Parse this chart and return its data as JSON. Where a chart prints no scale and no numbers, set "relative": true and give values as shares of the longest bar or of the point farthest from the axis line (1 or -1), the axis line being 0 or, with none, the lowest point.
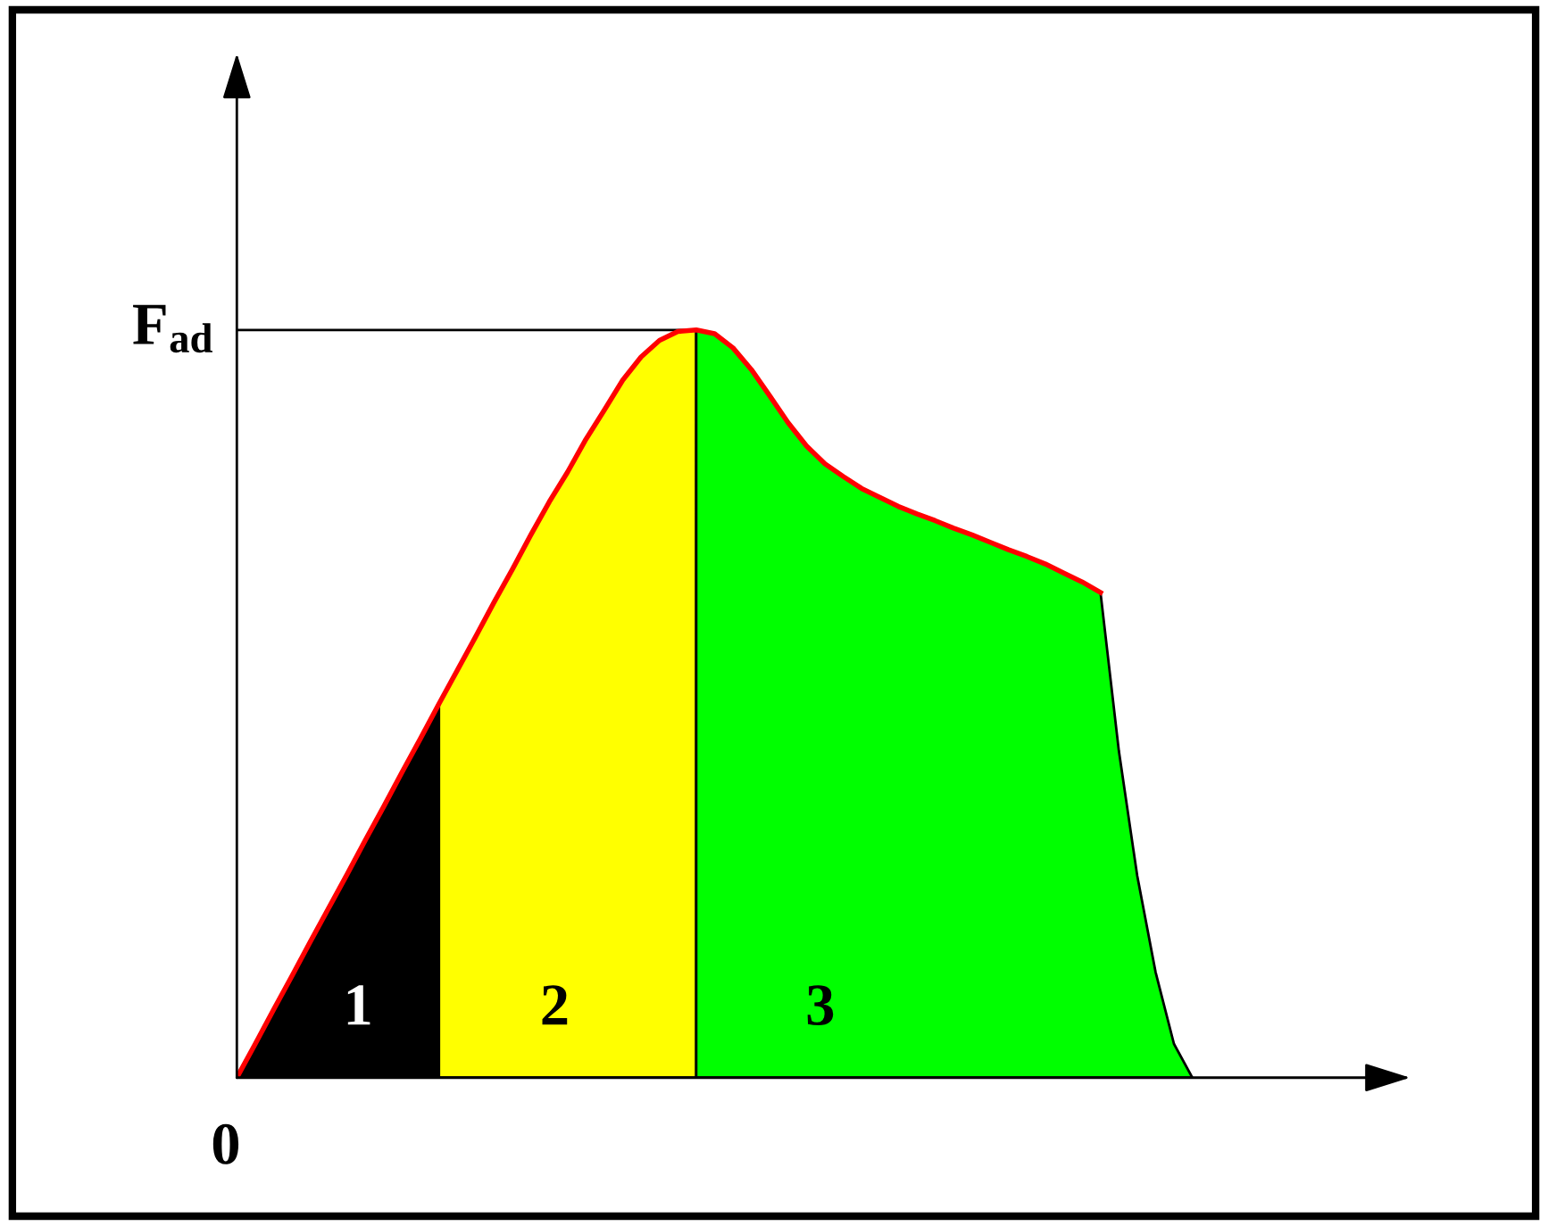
{
  "chart_data": {
    "type": "area",
    "relative": true,
    "categories": [
      null,
      null,
      null,
      null,
      null,
      null,
      null,
      null,
      null,
      null,
      null,
      null,
      null,
      null,
      null,
      null,
      null,
      null,
      null,
      null,
      null,
      null,
      null,
      null,
      null,
      null,
      null,
      null,
      null,
      null,
      null,
      null,
      null,
      null,
      null,
      null,
      null,
      null,
      null,
      null,
      null,
      null,
      null,
      null,
      null,
      null,
      null,
      null,
      null,
      null,
      null,
      null,
      null
    ],
    "series": [
      {
        "color": "#000000",
        "values": [
          0,
          0.045,
          0.091,
          0.136,
          0.182,
          0.227,
          0.272,
          0.318,
          0.363,
          0.409,
          0.454,
          0.5,
          null,
          null,
          null,
          null,
          null,
          null,
          null,
          null,
          null,
          null,
          null,
          null,
          null,
          null,
          null,
          null,
          null,
          null,
          null,
          null,
          null,
          null,
          null,
          null,
          null,
          null,
          null,
          null,
          null,
          null,
          null,
          null,
          null,
          null,
          null,
          null,
          null,
          null,
          null,
          null,
          null
        ]
      },
      {
        "color": "#ffff00",
        "values": [
          null,
          null,
          null,
          null,
          null,
          null,
          null,
          null,
          null,
          null,
          null,
          0.5,
          0.545,
          0.59,
          0.636,
          0.68,
          0.726,
          0.77,
          0.81,
          0.854,
          0.893,
          0.933,
          0.964,
          0.986,
          0.998,
          1.0,
          null,
          null,
          null,
          null,
          null,
          null,
          null,
          null,
          null,
          null,
          null,
          null,
          null,
          null,
          null,
          null,
          null,
          null,
          null,
          null,
          null,
          null,
          null,
          null,
          null,
          null,
          null
        ]
      },
      {
        "color": "#00ff00",
        "values": [
          null,
          null,
          null,
          null,
          null,
          null,
          null,
          null,
          null,
          null,
          null,
          null,
          null,
          null,
          null,
          null,
          null,
          null,
          null,
          null,
          null,
          null,
          null,
          null,
          null,
          1.0,
          0.995,
          0.976,
          0.947,
          0.912,
          0.876,
          0.845,
          0.821,
          0.804,
          0.788,
          0.776,
          0.764,
          0.754,
          0.745,
          0.735,
          0.726,
          0.716,
          0.706,
          0.697,
          0.687,
          0.675,
          0.663,
          0.649,
          0.437,
          0.27,
          0.141,
          0.045,
          0
        ]
      },
      {
        "type": "line",
        "color": "#ff0000",
        "values": [
          0,
          0.045,
          0.091,
          0.136,
          0.182,
          0.227,
          0.272,
          0.318,
          0.363,
          0.409,
          0.454,
          0.5,
          0.545,
          0.59,
          0.636,
          0.68,
          0.726,
          0.77,
          0.81,
          0.854,
          0.893,
          0.933,
          0.964,
          0.986,
          0.998,
          1.0,
          0.995,
          0.976,
          0.947,
          0.912,
          0.876,
          0.845,
          0.821,
          0.804,
          0.788,
          0.776,
          0.764,
          0.754,
          0.745,
          0.735,
          0.726,
          0.716,
          0.706,
          0.697,
          0.687,
          0.675,
          0.663,
          0.649,
          null,
          null,
          null,
          null,
          null
        ]
      }
    ],
    "ref_lines": [
      {
        "axis": "y",
        "value": 1.0,
        "label": "F$_{ad}$",
        "color": "#000000"
      }
    ],
    "annotations": [
      "0",
      "1",
      "2",
      "3"
    ],
    "grid": false
  }
}
